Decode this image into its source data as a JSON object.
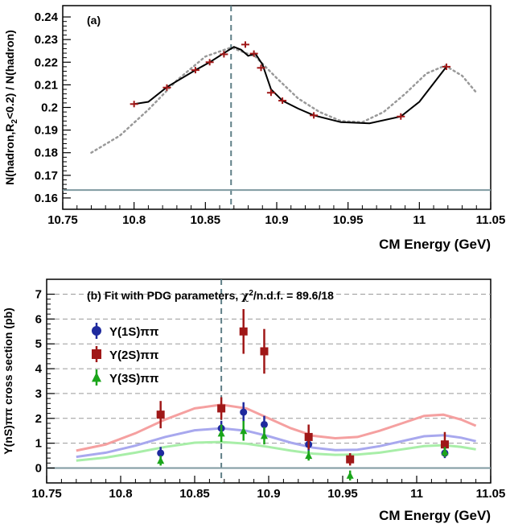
{
  "chart_data": [
    {
      "type": "line",
      "panel_label": "(a)",
      "xlabel": "CM Energy (GeV)",
      "ylabel": "N(hadron,R₂<0.2) / N(hadron)",
      "ylabel_main": "N(hadron,R",
      "ylabel_sub": "2",
      "ylabel_rest": "<0.2) / N(hadron)",
      "xlim": [
        10.75,
        11.05
      ],
      "ylim": [
        0.155,
        0.245
      ],
      "xticks": [
        10.75,
        10.8,
        10.85,
        10.9,
        10.95,
        11.0,
        11.05
      ],
      "xtick_labels": [
        "10.75",
        "10.8",
        "10.85",
        "10.9",
        "10.95",
        "11",
        "11.05"
      ],
      "yticks": [
        0.16,
        0.17,
        0.18,
        0.19,
        0.2,
        0.21,
        0.22,
        0.23,
        0.24
      ],
      "ytick_labels": [
        "0.16",
        "0.17",
        "0.18",
        "0.19",
        "0.2",
        "0.21",
        "0.22",
        "0.23",
        "0.24"
      ],
      "reference_lines": {
        "vertical_x": 10.868,
        "horizontal_y": 0.1635
      },
      "data_points": {
        "x": [
          10.8,
          10.823,
          10.843,
          10.853,
          10.863,
          10.878,
          10.884,
          10.889,
          10.896,
          10.904,
          10.926,
          10.987,
          11.019
        ],
        "y": [
          0.2015,
          0.2088,
          0.2165,
          0.22,
          0.2235,
          0.2278,
          0.2238,
          0.2175,
          0.2065,
          0.203,
          0.1965,
          0.196,
          0.218
        ],
        "color": "#a01818"
      },
      "fit_curve": {
        "x": [
          10.8,
          10.81,
          10.823,
          10.843,
          10.853,
          10.863,
          10.87,
          10.875,
          10.88,
          10.885,
          10.89,
          10.896,
          10.904,
          10.915,
          10.926,
          10.945,
          10.965,
          10.987,
          11.0,
          11.019
        ],
        "y": [
          0.2015,
          0.2025,
          0.209,
          0.2165,
          0.22,
          0.224,
          0.2268,
          0.2255,
          0.2228,
          0.2238,
          0.219,
          0.208,
          0.203,
          0.1995,
          0.1965,
          0.1935,
          0.193,
          0.196,
          0.2025,
          0.218
        ],
        "color": "#000000"
      },
      "model_curve": {
        "x": [
          10.77,
          10.79,
          10.81,
          10.83,
          10.85,
          10.868,
          10.885,
          10.9,
          10.915,
          10.93,
          10.945,
          10.96,
          10.975,
          10.99,
          11.005,
          11.018,
          11.03,
          11.04
        ],
        "y": [
          0.18,
          0.1875,
          0.199,
          0.212,
          0.2225,
          0.2265,
          0.2225,
          0.213,
          0.204,
          0.198,
          0.194,
          0.1935,
          0.198,
          0.206,
          0.215,
          0.2185,
          0.214,
          0.2065
        ],
        "color": "#999999",
        "style": "dotted"
      },
      "grid": false
    },
    {
      "type": "scatter",
      "panel_label": "(b) Fit with PDG parameters, ",
      "chi_symbol": "χ",
      "chi_sup": "2",
      "panel_label_rest": "/n.d.f. = 89.6/18",
      "xlabel": "CM Energy (GeV)",
      "ylabel": "Υ(nS)ππ cross section (pb)",
      "xlim": [
        10.75,
        11.05
      ],
      "ylim": [
        -0.6,
        7.6
      ],
      "xticks": [
        10.75,
        10.8,
        10.85,
        10.9,
        10.95,
        11.0,
        11.05
      ],
      "xtick_labels": [
        "10.75",
        "10.8",
        "10.85",
        "10.9",
        "10.95",
        "11",
        "11.05"
      ],
      "yticks": [
        0,
        1,
        2,
        3,
        4,
        5,
        6,
        7
      ],
      "ytick_labels": [
        "0",
        "1",
        "2",
        "3",
        "4",
        "5",
        "6",
        "7"
      ],
      "grid": "horizontal dashed",
      "reference_lines": {
        "vertical_x": 10.868,
        "horizontal_y": 0
      },
      "legend_position": "top-left",
      "series": [
        {
          "name": "Υ(1S)ππ",
          "marker": "circle",
          "color": "#1f2a9e",
          "x": [
            10.827,
            10.868,
            10.883,
            10.897,
            10.927,
            10.955,
            11.019
          ],
          "y": [
            0.6,
            1.6,
            2.25,
            1.75,
            0.95,
            0.35,
            0.6
          ],
          "err": [
            0.25,
            0.3,
            0.4,
            0.35,
            0.25,
            0.2,
            0.2
          ]
        },
        {
          "name": "Υ(2S)ππ",
          "marker": "square",
          "color": "#a01818",
          "x": [
            10.827,
            10.868,
            10.883,
            10.897,
            10.927,
            10.955,
            11.019
          ],
          "y": [
            2.15,
            2.4,
            5.5,
            4.7,
            1.25,
            0.35,
            0.95
          ],
          "err": [
            0.55,
            0.45,
            0.9,
            0.9,
            0.5,
            0.25,
            0.5
          ]
        },
        {
          "name": "Υ(3S)ππ",
          "marker": "triangle",
          "color": "#1aa51a",
          "x": [
            10.827,
            10.868,
            10.883,
            10.897,
            10.927,
            10.955,
            11.019
          ],
          "y": [
            0.3,
            1.4,
            1.5,
            1.3,
            0.5,
            -0.3,
            0.65
          ],
          "err": [
            0.2,
            0.35,
            0.4,
            0.35,
            0.2,
            0.2,
            0.2
          ]
        }
      ],
      "fit_curves": [
        {
          "color": "#f5a0a0",
          "x": [
            10.77,
            10.79,
            10.81,
            10.83,
            10.85,
            10.868,
            10.885,
            10.9,
            10.915,
            10.93,
            10.945,
            10.96,
            10.975,
            10.99,
            11.005,
            11.018,
            11.03,
            11.04
          ],
          "y": [
            0.7,
            0.95,
            1.4,
            1.95,
            2.4,
            2.55,
            2.4,
            2.0,
            1.6,
            1.3,
            1.2,
            1.25,
            1.5,
            1.8,
            2.1,
            2.15,
            1.95,
            1.7
          ]
        },
        {
          "color": "#a8a8ee",
          "x": [
            10.77,
            10.79,
            10.81,
            10.83,
            10.85,
            10.868,
            10.885,
            10.9,
            10.915,
            10.93,
            10.945,
            10.96,
            10.975,
            10.99,
            11.005,
            11.018,
            11.03,
            11.04
          ],
          "y": [
            0.45,
            0.62,
            0.9,
            1.25,
            1.52,
            1.6,
            1.5,
            1.28,
            1.02,
            0.82,
            0.72,
            0.74,
            0.88,
            1.08,
            1.28,
            1.32,
            1.22,
            1.08
          ]
        },
        {
          "color": "#a8eea8",
          "x": [
            10.77,
            10.79,
            10.81,
            10.83,
            10.85,
            10.868,
            10.885,
            10.9,
            10.915,
            10.93,
            10.945,
            10.96,
            10.975,
            10.99,
            11.005,
            11.018,
            11.03,
            11.04
          ],
          "y": [
            0.3,
            0.42,
            0.62,
            0.85,
            1.02,
            1.05,
            0.98,
            0.85,
            0.7,
            0.58,
            0.53,
            0.54,
            0.62,
            0.75,
            0.88,
            0.92,
            0.85,
            0.75
          ]
        }
      ]
    }
  ]
}
